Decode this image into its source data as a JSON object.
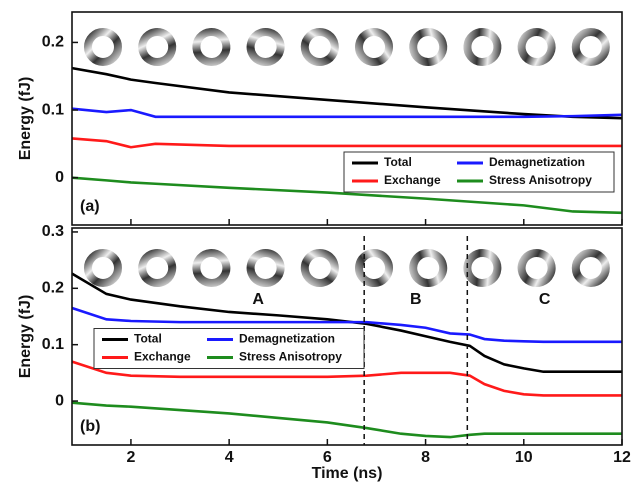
{
  "chart_data": [
    {
      "type": "line",
      "panel_label": "(a)",
      "ylabel": "Energy (fJ)",
      "x": [
        0.8,
        1.5,
        2,
        2.5,
        4,
        6,
        8,
        10,
        11,
        12
      ],
      "series": [
        {
          "name": "Total",
          "color": "#000000",
          "values": [
            0.162,
            0.153,
            0.145,
            0.14,
            0.126,
            0.115,
            0.104,
            0.094,
            0.09,
            0.088
          ]
        },
        {
          "name": "Exchange",
          "color": "#ff1a1a",
          "values": [
            0.058,
            0.054,
            0.045,
            0.05,
            0.047,
            0.047,
            0.047,
            0.047,
            0.047,
            0.047
          ]
        },
        {
          "name": "Demagnetization",
          "color": "#1a1aff",
          "values": [
            0.102,
            0.097,
            0.1,
            0.09,
            0.09,
            0.09,
            0.09,
            0.09,
            0.091,
            0.093
          ]
        },
        {
          "name": "Stress Anisotropy",
          "color": "#1e8c1e",
          "values": [
            0.0,
            -0.004,
            -0.007,
            -0.009,
            -0.015,
            -0.022,
            -0.031,
            -0.041,
            -0.05,
            -0.052
          ]
        }
      ],
      "xlim": [
        0.8,
        12
      ],
      "xticks": [
        2,
        4,
        6,
        8,
        10,
        12
      ],
      "ylim": [
        -0.07,
        0.245
      ],
      "yticks": [
        0,
        0.1,
        0.2
      ],
      "legend": "lower right"
    },
    {
      "type": "line",
      "panel_label": "(b)",
      "ylabel": "Energy (fJ)",
      "xlabel": "Time (ns)",
      "x": [
        0.8,
        1.5,
        2,
        3,
        4,
        5,
        6,
        6.8,
        7.5,
        8,
        8.5,
        8.9,
        9.2,
        9.6,
        10,
        10.4,
        11,
        12
      ],
      "series": [
        {
          "name": "Total",
          "color": "#000000",
          "values": [
            0.226,
            0.19,
            0.18,
            0.168,
            0.158,
            0.152,
            0.145,
            0.137,
            0.125,
            0.115,
            0.105,
            0.098,
            0.08,
            0.065,
            0.058,
            0.052,
            0.052,
            0.052
          ]
        },
        {
          "name": "Exchange",
          "color": "#ff1a1a",
          "values": [
            0.07,
            0.05,
            0.045,
            0.043,
            0.043,
            0.043,
            0.043,
            0.045,
            0.05,
            0.05,
            0.05,
            0.045,
            0.03,
            0.018,
            0.012,
            0.01,
            0.01,
            0.01
          ]
        },
        {
          "name": "Demagnetization",
          "color": "#1a1aff",
          "values": [
            0.165,
            0.145,
            0.142,
            0.14,
            0.14,
            0.14,
            0.14,
            0.14,
            0.135,
            0.13,
            0.12,
            0.118,
            0.11,
            0.107,
            0.106,
            0.105,
            0.105,
            0.105
          ]
        },
        {
          "name": "Stress Anisotropy",
          "color": "#1e8c1e",
          "values": [
            -0.003,
            -0.008,
            -0.01,
            -0.016,
            -0.022,
            -0.03,
            -0.038,
            -0.048,
            -0.058,
            -0.062,
            -0.064,
            -0.06,
            -0.058,
            -0.058,
            -0.058,
            -0.058,
            -0.058,
            -0.058
          ]
        }
      ],
      "xlim": [
        0.8,
        12
      ],
      "xticks": [
        2,
        4,
        6,
        8,
        10,
        12
      ],
      "ylim": [
        -0.078,
        0.307
      ],
      "yticks": [
        0,
        0.1,
        0.2,
        0.3
      ],
      "vlines": [
        6.75,
        8.85
      ],
      "regions": [
        "A",
        "B",
        "C"
      ],
      "legend": "center left"
    }
  ]
}
